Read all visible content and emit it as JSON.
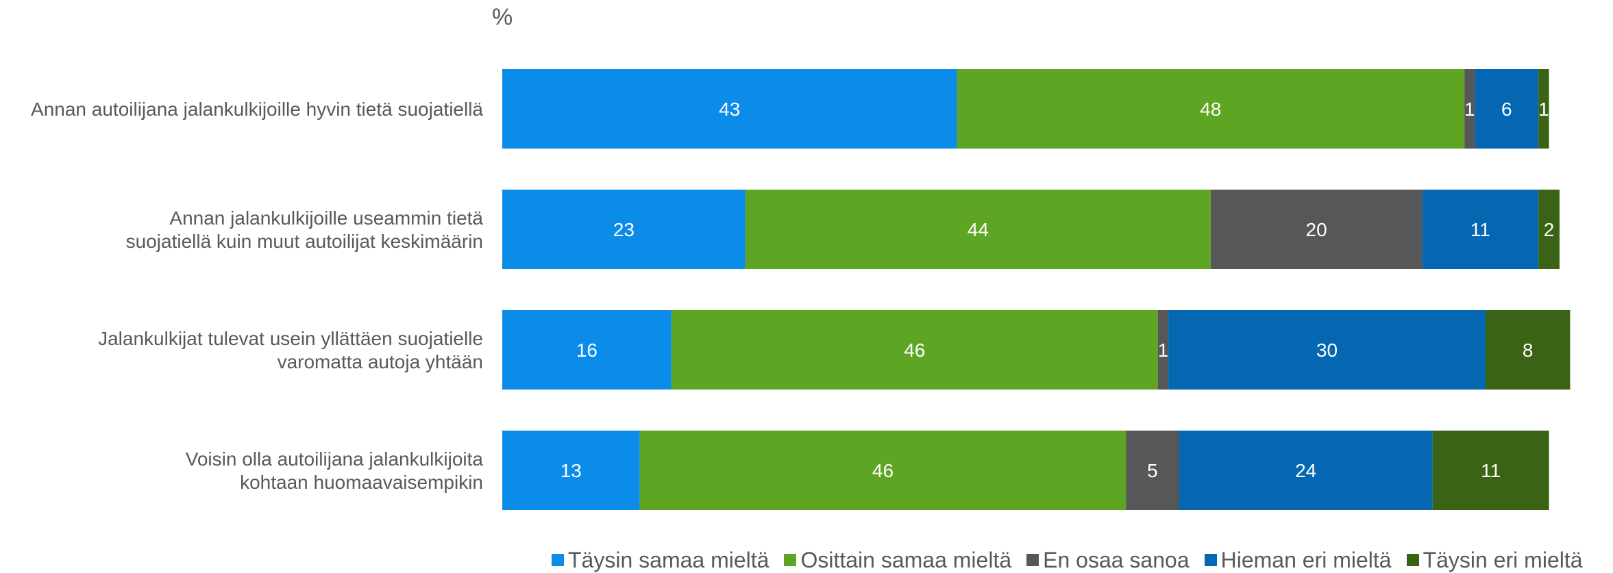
{
  "chart_data": {
    "type": "bar",
    "orientation": "horizontal",
    "stacked": true,
    "unit_label": "%",
    "categories": [
      "Annan autoilijana jalankulkijoille hyvin tietä suojatiellä",
      "Annan jalankulkijoille useammin tietä suojatiellä kuin muut autoilijat keskimäärin",
      "Jalankulkijat tulevat usein yllättäen suojatielle varomatta autoja yhtään",
      "Voisin olla autoilijana jalankulkijoita kohtaan huomaavaisempikin"
    ],
    "category_lines": [
      [
        "Annan autoilijana jalankulkijoille hyvin tietä suojatiellä"
      ],
      [
        "Annan jalankulkijoille useammin tietä",
        "suojatiellä kuin muut autoilijat keskimäärin"
      ],
      [
        "Jalankulkijat tulevat usein yllättäen suojatielle",
        "varomatta autoja yhtään"
      ],
      [
        "Voisin olla autoilijana jalankulkijoita",
        "kohtaan huomaavaisempikin"
      ]
    ],
    "series": [
      {
        "name": "Täysin samaa mieltä",
        "color": "#0b8ce9",
        "values": [
          43,
          23,
          16,
          13
        ]
      },
      {
        "name": "Osittain samaa mieltä",
        "color": "#5ea523",
        "values": [
          48,
          44,
          46,
          46
        ]
      },
      {
        "name": "En osaa sanoa",
        "color": "#575757",
        "values": [
          1,
          20,
          1,
          5
        ]
      },
      {
        "name": "Hieman eri mieltä",
        "color": "#0567b1",
        "values": [
          6,
          11,
          30,
          24
        ]
      },
      {
        "name": "Täysin eri mieltä",
        "color": "#3b6315",
        "values": [
          1,
          2,
          8,
          11
        ]
      }
    ],
    "xlim": [
      0,
      100
    ],
    "grid": false,
    "legend_position": "bottom"
  }
}
